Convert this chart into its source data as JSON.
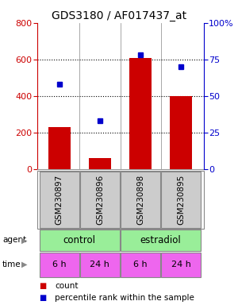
{
  "title": "GDS3180 / AF017437_at",
  "samples": [
    "GSM230897",
    "GSM230896",
    "GSM230898",
    "GSM230895"
  ],
  "counts": [
    230,
    60,
    610,
    400
  ],
  "percentiles": [
    58,
    33,
    78,
    70
  ],
  "bar_color": "#cc0000",
  "dot_color": "#0000cc",
  "ylim_left": [
    0,
    800
  ],
  "ylim_right": [
    0,
    100
  ],
  "yticks_left": [
    0,
    200,
    400,
    600,
    800
  ],
  "yticks_right": [
    0,
    25,
    50,
    75,
    100
  ],
  "yticklabels_right": [
    "0",
    "25",
    "50",
    "75",
    "100%"
  ],
  "agent_color": "#99ee99",
  "time_color": "#ee66ee",
  "bg_color": "#cccccc",
  "time_labels": [
    "6 h",
    "24 h",
    "6 h",
    "24 h"
  ],
  "title_fontsize": 10,
  "axis_fontsize": 8,
  "tick_fontsize": 8
}
